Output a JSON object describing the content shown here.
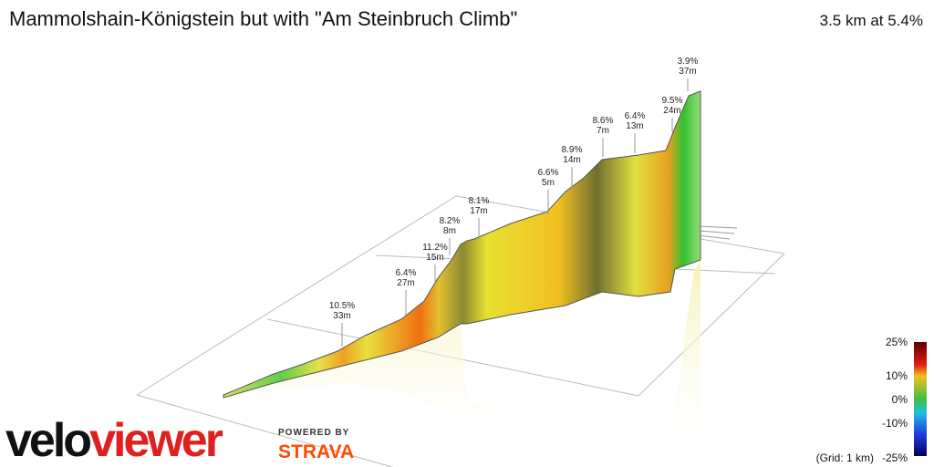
{
  "header": {
    "title": "Mammolshain-Königstein but with \"Am Steinbruch Climb\"",
    "summary": "3.5 km at 5.4%"
  },
  "annotations": [
    {
      "grade": "10.5%",
      "length": "33m"
    },
    {
      "grade": "6.4%",
      "length": "27m"
    },
    {
      "grade": "11.2%",
      "length": "15m"
    },
    {
      "grade": "8.2%",
      "length": "8m"
    },
    {
      "grade": "8.1%",
      "length": "17m"
    },
    {
      "grade": "6.6%",
      "length": "5m"
    },
    {
      "grade": "8.9%",
      "length": "14m"
    },
    {
      "grade": "8.6%",
      "length": "7m"
    },
    {
      "grade": "6.4%",
      "length": "13m"
    },
    {
      "grade": "9.5%",
      "length": "24m"
    },
    {
      "grade": "3.9%",
      "length": "37m"
    }
  ],
  "legend": {
    "ticks": [
      "25%",
      "10%",
      "0%",
      "-10%",
      "-25%"
    ],
    "grid_note": "(Grid: 1 km)"
  },
  "branding": {
    "logo_left": "velo",
    "logo_right": "viewer",
    "powered_by": "POWERED BY",
    "strava": "STRAVA"
  }
}
